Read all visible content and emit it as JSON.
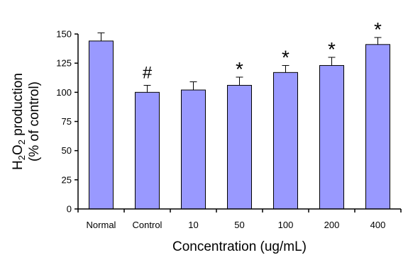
{
  "chart_data": {
    "type": "bar",
    "categories": [
      "Normal",
      "Control",
      "10",
      "50",
      "100",
      "200",
      "400"
    ],
    "values": [
      144,
      100,
      102,
      106,
      117,
      123,
      141
    ],
    "errors": [
      7,
      6,
      7,
      7,
      6,
      7,
      6
    ],
    "annotations": [
      "",
      "#",
      "",
      "*",
      "*",
      "*",
      "*"
    ],
    "xlabel": "Concentration (ug/mL)",
    "ylabel": "H2O2 production (% of control)",
    "ylabel_line1_main": "H",
    "ylabel_line1_sub1": "2",
    "ylabel_line1_mid": "O",
    "ylabel_line1_sub2": "2",
    "ylabel_line1_end": " production",
    "ylabel_line2": "(% of control)",
    "ylim": [
      0,
      150
    ],
    "yticks": [
      "0",
      "25",
      "50",
      "75",
      "100",
      "125",
      "150"
    ],
    "grid": false,
    "bar_color": "#9999ff",
    "edge_color": "#000000"
  }
}
